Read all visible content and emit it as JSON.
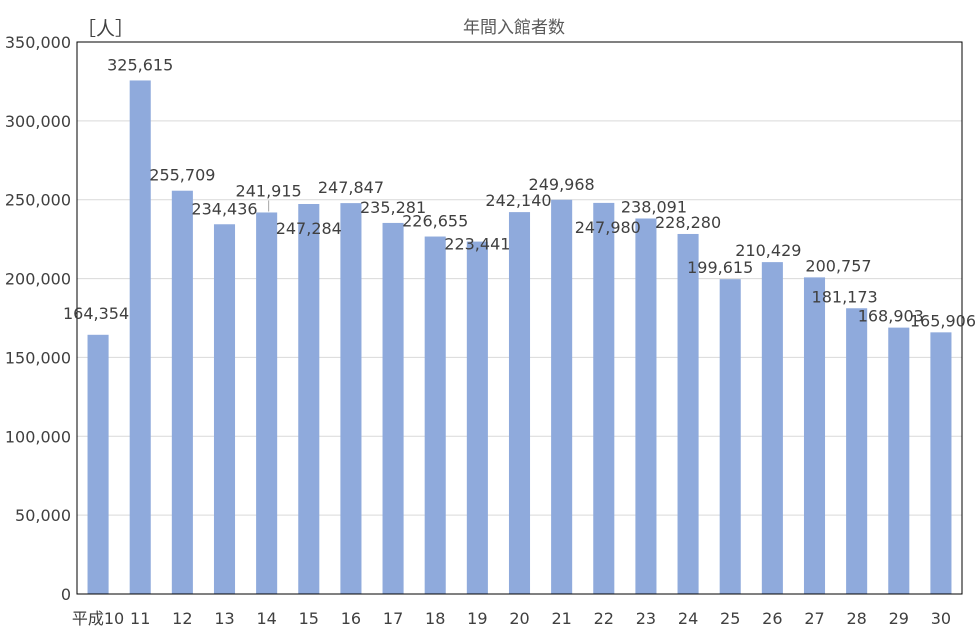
{
  "chart_data": {
    "type": "bar",
    "title": "年間入館者数",
    "ylabel": "［人］",
    "xlabel": "",
    "ylim": [
      0,
      350000
    ],
    "yticks": [
      0,
      50000,
      100000,
      150000,
      200000,
      250000,
      300000,
      350000
    ],
    "ytick_labels": [
      "0",
      "50,000",
      "100,000",
      "150,000",
      "200,000",
      "250,000",
      "300,000",
      "350,000"
    ],
    "categories": [
      "平成10",
      "11",
      "12",
      "13",
      "14",
      "15",
      "16",
      "17",
      "18",
      "19",
      "20",
      "21",
      "22",
      "23",
      "24",
      "25",
      "26",
      "27",
      "28",
      "29",
      "30"
    ],
    "values": [
      164354,
      325615,
      255709,
      234436,
      241915,
      247284,
      247847,
      235281,
      226655,
      223441,
      242140,
      249968,
      247980,
      238091,
      228280,
      199615,
      210429,
      200757,
      181173,
      168903,
      165906
    ],
    "value_labels": [
      "164,354",
      "325,615",
      "255,709",
      "234,436",
      "241,915",
      "247,284",
      "247,847",
      "235,281",
      "226,655",
      "223,441",
      "242,140",
      "249,968",
      "247,980",
      "238,091",
      "228,280",
      "199,615",
      "210,429",
      "200,757",
      "181,173",
      "168,903",
      "165,906"
    ],
    "grid": true,
    "legend": "none",
    "bar_color": "#8faadc",
    "grid_color": "#d9d9d9"
  }
}
